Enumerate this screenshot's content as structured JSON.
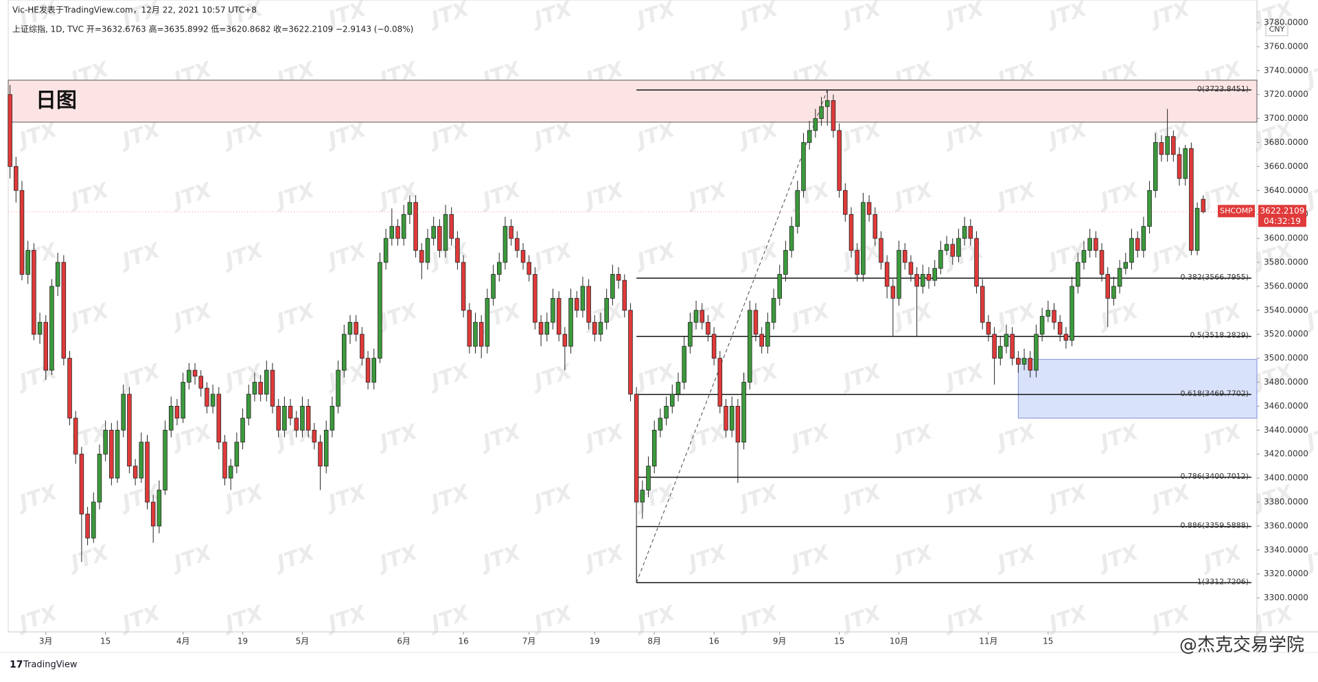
{
  "chart_data": {
    "type": "candlestick",
    "header": "Vic-HE发表于TradingView.com，12月 22, 2021 10:57 UTC+8",
    "legend": "上证综指, 1D, TVC  开=3632.6763  高=3635.8992  低=3620.8682  收=3622.2109  −2.9143 (−0.08%)",
    "currency": "CNY",
    "symbol": "SHCOMP",
    "last_price": 3622.2109,
    "countdown": "04:32:19",
    "brand": "TradingView",
    "watermark": "JTX",
    "signature": "@杰克交易学院",
    "up_color": "#3c9a3c",
    "down_color": "#e03a3a",
    "candles": [
      [
        3720,
        3728,
        3650,
        3660
      ],
      [
        3660,
        3668,
        3630,
        3640
      ],
      [
        3640,
        3648,
        3565,
        3570
      ],
      [
        3570,
        3598,
        3562,
        3590
      ],
      [
        3590,
        3596,
        3515,
        3520
      ],
      [
        3520,
        3538,
        3512,
        3530
      ],
      [
        3530,
        3536,
        3482,
        3490
      ],
      [
        3490,
        3566,
        3486,
        3560
      ],
      [
        3560,
        3588,
        3552,
        3580
      ],
      [
        3580,
        3586,
        3494,
        3500
      ],
      [
        3500,
        3506,
        3444,
        3450
      ],
      [
        3450,
        3456,
        3412,
        3420
      ],
      [
        3420,
        3426,
        3330,
        3370
      ],
      [
        3370,
        3376,
        3344,
        3350
      ],
      [
        3350,
        3388,
        3346,
        3380
      ],
      [
        3380,
        3428,
        3374,
        3420
      ],
      [
        3420,
        3448,
        3414,
        3440
      ],
      [
        3440,
        3446,
        3394,
        3400
      ],
      [
        3400,
        3448,
        3396,
        3440
      ],
      [
        3440,
        3478,
        3434,
        3470
      ],
      [
        3470,
        3476,
        3404,
        3410
      ],
      [
        3410,
        3416,
        3394,
        3400
      ],
      [
        3400,
        3438,
        3396,
        3430
      ],
      [
        3430,
        3436,
        3374,
        3380
      ],
      [
        3380,
        3386,
        3346,
        3360
      ],
      [
        3360,
        3398,
        3354,
        3390
      ],
      [
        3390,
        3448,
        3386,
        3440
      ],
      [
        3440,
        3468,
        3434,
        3460
      ],
      [
        3460,
        3466,
        3444,
        3450
      ],
      [
        3450,
        3488,
        3446,
        3480
      ],
      [
        3480,
        3496,
        3474,
        3490
      ],
      [
        3490,
        3496,
        3478,
        3485
      ],
      [
        3485,
        3490,
        3468,
        3475
      ],
      [
        3475,
        3480,
        3454,
        3460
      ],
      [
        3460,
        3478,
        3454,
        3470
      ],
      [
        3470,
        3476,
        3424,
        3430
      ],
      [
        3430,
        3436,
        3394,
        3400
      ],
      [
        3400,
        3416,
        3390,
        3410
      ],
      [
        3410,
        3438,
        3404,
        3430
      ],
      [
        3430,
        3458,
        3424,
        3450
      ],
      [
        3450,
        3478,
        3444,
        3470
      ],
      [
        3470,
        3488,
        3464,
        3480
      ],
      [
        3480,
        3486,
        3464,
        3470
      ],
      [
        3470,
        3498,
        3464,
        3490
      ],
      [
        3490,
        3496,
        3454,
        3460
      ],
      [
        3460,
        3466,
        3434,
        3440
      ],
      [
        3440,
        3468,
        3434,
        3460
      ],
      [
        3460,
        3466,
        3444,
        3450
      ],
      [
        3450,
        3456,
        3434,
        3440
      ],
      [
        3440,
        3468,
        3434,
        3460
      ],
      [
        3460,
        3466,
        3434,
        3440
      ],
      [
        3440,
        3446,
        3424,
        3430
      ],
      [
        3430,
        3436,
        3390,
        3410
      ],
      [
        3410,
        3448,
        3404,
        3440
      ],
      [
        3440,
        3468,
        3434,
        3460
      ],
      [
        3460,
        3498,
        3454,
        3490
      ],
      [
        3490,
        3528,
        3484,
        3520
      ],
      [
        3520,
        3536,
        3512,
        3530
      ],
      [
        3530,
        3536,
        3514,
        3520
      ],
      [
        3520,
        3526,
        3494,
        3500
      ],
      [
        3500,
        3506,
        3474,
        3480
      ],
      [
        3480,
        3508,
        3474,
        3500
      ],
      [
        3500,
        3588,
        3496,
        3580
      ],
      [
        3580,
        3608,
        3574,
        3600
      ],
      [
        3600,
        3625,
        3594,
        3610
      ],
      [
        3610,
        3616,
        3594,
        3600
      ],
      [
        3600,
        3628,
        3594,
        3620
      ],
      [
        3620,
        3636,
        3612,
        3630
      ],
      [
        3630,
        3636,
        3584,
        3590
      ],
      [
        3590,
        3596,
        3566,
        3580
      ],
      [
        3580,
        3608,
        3574,
        3600
      ],
      [
        3600,
        3618,
        3594,
        3610
      ],
      [
        3610,
        3616,
        3584,
        3590
      ],
      [
        3590,
        3628,
        3584,
        3620
      ],
      [
        3620,
        3626,
        3594,
        3600
      ],
      [
        3600,
        3606,
        3574,
        3580
      ],
      [
        3580,
        3586,
        3534,
        3540
      ],
      [
        3540,
        3546,
        3504,
        3510
      ],
      [
        3510,
        3538,
        3504,
        3530
      ],
      [
        3530,
        3536,
        3500,
        3510
      ],
      [
        3510,
        3558,
        3504,
        3550
      ],
      [
        3550,
        3578,
        3544,
        3570
      ],
      [
        3570,
        3588,
        3564,
        3580
      ],
      [
        3580,
        3618,
        3574,
        3610
      ],
      [
        3610,
        3616,
        3594,
        3600
      ],
      [
        3600,
        3606,
        3584,
        3590
      ],
      [
        3590,
        3596,
        3574,
        3580
      ],
      [
        3580,
        3586,
        3564,
        3570
      ],
      [
        3570,
        3576,
        3524,
        3530
      ],
      [
        3530,
        3536,
        3510,
        3520
      ],
      [
        3520,
        3538,
        3514,
        3530
      ],
      [
        3530,
        3558,
        3524,
        3550
      ],
      [
        3550,
        3556,
        3514,
        3520
      ],
      [
        3520,
        3526,
        3490,
        3510
      ],
      [
        3510,
        3558,
        3504,
        3550
      ],
      [
        3550,
        3556,
        3534,
        3540
      ],
      [
        3540,
        3568,
        3534,
        3560
      ],
      [
        3560,
        3566,
        3524,
        3530
      ],
      [
        3530,
        3536,
        3514,
        3520
      ],
      [
        3520,
        3538,
        3514,
        3530
      ],
      [
        3530,
        3558,
        3524,
        3550
      ],
      [
        3550,
        3578,
        3544,
        3570
      ],
      [
        3570,
        3576,
        3558,
        3565
      ],
      [
        3565,
        3570,
        3534,
        3540
      ],
      [
        3540,
        3546,
        3464,
        3470
      ],
      [
        3470,
        3476,
        3312.7206,
        3380
      ],
      [
        3380,
        3398,
        3366,
        3390
      ],
      [
        3390,
        3418,
        3384,
        3410
      ],
      [
        3410,
        3448,
        3404,
        3440
      ],
      [
        3440,
        3458,
        3434,
        3450
      ],
      [
        3450,
        3468,
        3444,
        3460
      ],
      [
        3460,
        3478,
        3454,
        3470
      ],
      [
        3470,
        3488,
        3464,
        3480
      ],
      [
        3480,
        3518,
        3474,
        3510
      ],
      [
        3510,
        3538,
        3504,
        3530
      ],
      [
        3530,
        3548,
        3524,
        3540
      ],
      [
        3540,
        3546,
        3524,
        3530
      ],
      [
        3530,
        3536,
        3514,
        3520
      ],
      [
        3520,
        3526,
        3494,
        3500
      ],
      [
        3500,
        3506,
        3454,
        3460
      ],
      [
        3460,
        3466,
        3434,
        3440
      ],
      [
        3440,
        3468,
        3434,
        3460
      ],
      [
        3460,
        3466,
        3396,
        3430
      ],
      [
        3430,
        3488,
        3424,
        3480
      ],
      [
        3480,
        3548,
        3474,
        3540
      ],
      [
        3540,
        3546,
        3514,
        3520
      ],
      [
        3520,
        3526,
        3504,
        3510
      ],
      [
        3510,
        3538,
        3504,
        3530
      ],
      [
        3530,
        3558,
        3524,
        3550
      ],
      [
        3550,
        3578,
        3544,
        3570
      ],
      [
        3570,
        3598,
        3564,
        3590
      ],
      [
        3590,
        3618,
        3584,
        3610
      ],
      [
        3610,
        3648,
        3604,
        3640
      ],
      [
        3640,
        3688,
        3634,
        3680
      ],
      [
        3680,
        3698,
        3674,
        3690
      ],
      [
        3690,
        3708,
        3684,
        3700
      ],
      [
        3700,
        3718,
        3694,
        3710
      ],
      [
        3710,
        3723.8451,
        3694,
        3715
      ],
      [
        3715,
        3720,
        3684,
        3690
      ],
      [
        3690,
        3696,
        3634,
        3640
      ],
      [
        3640,
        3646,
        3614,
        3620
      ],
      [
        3620,
        3626,
        3584,
        3590
      ],
      [
        3590,
        3596,
        3564,
        3570
      ],
      [
        3570,
        3638,
        3564,
        3630
      ],
      [
        3630,
        3636,
        3614,
        3620
      ],
      [
        3620,
        3626,
        3594,
        3600
      ],
      [
        3600,
        3606,
        3574,
        3580
      ],
      [
        3580,
        3586,
        3550,
        3560
      ],
      [
        3560,
        3566,
        3518,
        3550
      ],
      [
        3550,
        3598,
        3544,
        3590
      ],
      [
        3590,
        3596,
        3574,
        3580
      ],
      [
        3580,
        3586,
        3564,
        3570
      ],
      [
        3570,
        3576,
        3518,
        3560
      ],
      [
        3560,
        3578,
        3554,
        3570
      ],
      [
        3570,
        3576,
        3558,
        3565
      ],
      [
        3565,
        3582,
        3560,
        3575
      ],
      [
        3575,
        3598,
        3570,
        3590
      ],
      [
        3590,
        3602,
        3586,
        3595
      ],
      [
        3595,
        3600,
        3578,
        3585
      ],
      [
        3585,
        3608,
        3580,
        3600
      ],
      [
        3600,
        3618,
        3594,
        3610
      ],
      [
        3610,
        3616,
        3594,
        3600
      ],
      [
        3600,
        3606,
        3554,
        3560
      ],
      [
        3560,
        3566,
        3524,
        3530
      ],
      [
        3530,
        3536,
        3514,
        3520
      ],
      [
        3520,
        3526,
        3478,
        3500
      ],
      [
        3500,
        3518,
        3494,
        3510
      ],
      [
        3510,
        3528,
        3504,
        3520
      ],
      [
        3520,
        3526,
        3494,
        3500
      ],
      [
        3500,
        3506,
        3488,
        3495
      ],
      [
        3495,
        3508,
        3490,
        3500
      ],
      [
        3500,
        3506,
        3484,
        3490
      ],
      [
        3490,
        3528,
        3484,
        3520
      ],
      [
        3520,
        3542,
        3514,
        3535
      ],
      [
        3535,
        3548,
        3530,
        3540
      ],
      [
        3540,
        3546,
        3524,
        3530
      ],
      [
        3530,
        3536,
        3514,
        3520
      ],
      [
        3520,
        3526,
        3508,
        3515
      ],
      [
        3515,
        3568,
        3510,
        3560
      ],
      [
        3560,
        3588,
        3554,
        3580
      ],
      [
        3580,
        3598,
        3574,
        3590
      ],
      [
        3590,
        3608,
        3584,
        3600
      ],
      [
        3600,
        3606,
        3584,
        3590
      ],
      [
        3590,
        3596,
        3564,
        3570
      ],
      [
        3570,
        3576,
        3526,
        3550
      ],
      [
        3550,
        3568,
        3544,
        3560
      ],
      [
        3560,
        3582,
        3554,
        3575
      ],
      [
        3575,
        3588,
        3570,
        3580
      ],
      [
        3580,
        3608,
        3574,
        3600
      ],
      [
        3600,
        3606,
        3584,
        3590
      ],
      [
        3590,
        3618,
        3584,
        3610
      ],
      [
        3610,
        3648,
        3604,
        3640
      ],
      [
        3640,
        3688,
        3634,
        3680
      ],
      [
        3680,
        3686,
        3664,
        3670
      ],
      [
        3670,
        3708,
        3664,
        3685
      ],
      [
        3685,
        3690,
        3664,
        3670
      ],
      [
        3670,
        3676,
        3644,
        3650
      ],
      [
        3650,
        3678,
        3644,
        3675
      ],
      [
        3675,
        3680,
        3586,
        3590
      ],
      [
        3590,
        3630,
        3586,
        3625.1252
      ],
      [
        3632.6763,
        3635.8992,
        3620.8682,
        3622.2109
      ]
    ],
    "xlim": [
      -0.3,
      209
    ],
    "xticks": [
      {
        "value": 6,
        "label": "3月"
      },
      {
        "value": 16,
        "label": "15"
      },
      {
        "value": 29,
        "label": "4月"
      },
      {
        "value": 39,
        "label": "19"
      },
      {
        "value": 49,
        "label": "5月"
      },
      {
        "value": 66,
        "label": "6月"
      },
      {
        "value": 76,
        "label": "16"
      },
      {
        "value": 87,
        "label": "7月"
      },
      {
        "value": 98,
        "label": "19"
      },
      {
        "value": 108,
        "label": "8月"
      },
      {
        "value": 118,
        "label": "16"
      },
      {
        "value": 129,
        "label": "9月"
      },
      {
        "value": 139,
        "label": "15"
      },
      {
        "value": 149,
        "label": "10月"
      },
      {
        "value": 164,
        "label": "11月"
      },
      {
        "value": 174,
        "label": "15"
      }
    ],
    "ylim": [
      3271.7,
      3798.9
    ],
    "yticks": [
      {
        "value": 3300,
        "label": "3300.0000"
      },
      {
        "value": 3320,
        "label": "3320.0000"
      },
      {
        "value": 3340,
        "label": "3340.0000"
      },
      {
        "value": 3360,
        "label": "3360.0000"
      },
      {
        "value": 3380,
        "label": "3380.0000"
      },
      {
        "value": 3400,
        "label": "3400.0000"
      },
      {
        "value": 3420,
        "label": "3420.0000"
      },
      {
        "value": 3440,
        "label": "3440.0000"
      },
      {
        "value": 3460,
        "label": "3460.0000"
      },
      {
        "value": 3480,
        "label": "3480.0000"
      },
      {
        "value": 3500,
        "label": "3500.0000"
      },
      {
        "value": 3520,
        "label": "3520.0000"
      },
      {
        "value": 3540,
        "label": "3540.0000"
      },
      {
        "value": 3560,
        "label": "3560.0000"
      },
      {
        "value": 3580,
        "label": "3580.0000"
      },
      {
        "value": 3600,
        "label": "3600.0000"
      },
      {
        "value": 3620,
        "label": "3620.0000"
      },
      {
        "value": 3640,
        "label": "3640.0000"
      },
      {
        "value": 3660,
        "label": "3660.0000"
      },
      {
        "value": 3680,
        "label": "3680.0000"
      },
      {
        "value": 3700,
        "label": "3700.0000"
      },
      {
        "value": 3720,
        "label": "3720.0000"
      },
      {
        "value": 3740,
        "label": "3740.0000"
      },
      {
        "value": 3760,
        "label": "3760.0000"
      },
      {
        "value": 3780,
        "label": "3780.0000"
      }
    ],
    "grid": false,
    "fib_levels": [
      {
        "value": 3723.8451,
        "label": "0(3723.8451)"
      },
      {
        "value": 3566.7955,
        "label": "0.382(3566.7955)"
      },
      {
        "value": 3518.2829,
        "label": "0.5(3518.2829)"
      },
      {
        "value": 3469.7702,
        "label": "0.618(3469.7702)"
      },
      {
        "value": 3400.7012,
        "label": "0.786(3400.7012)"
      },
      {
        "value": 3359.5888,
        "label": "0.886(3359.5888)"
      },
      {
        "value": 3312.7206,
        "label": "1(3312.7206)"
      }
    ],
    "zones": [
      {
        "label": "日图",
        "top": 3732,
        "bottom": 3697,
        "color": "#fde4e4"
      },
      {
        "top": 3499,
        "bottom": 3450,
        "color": "#d9e2fb"
      }
    ]
  }
}
